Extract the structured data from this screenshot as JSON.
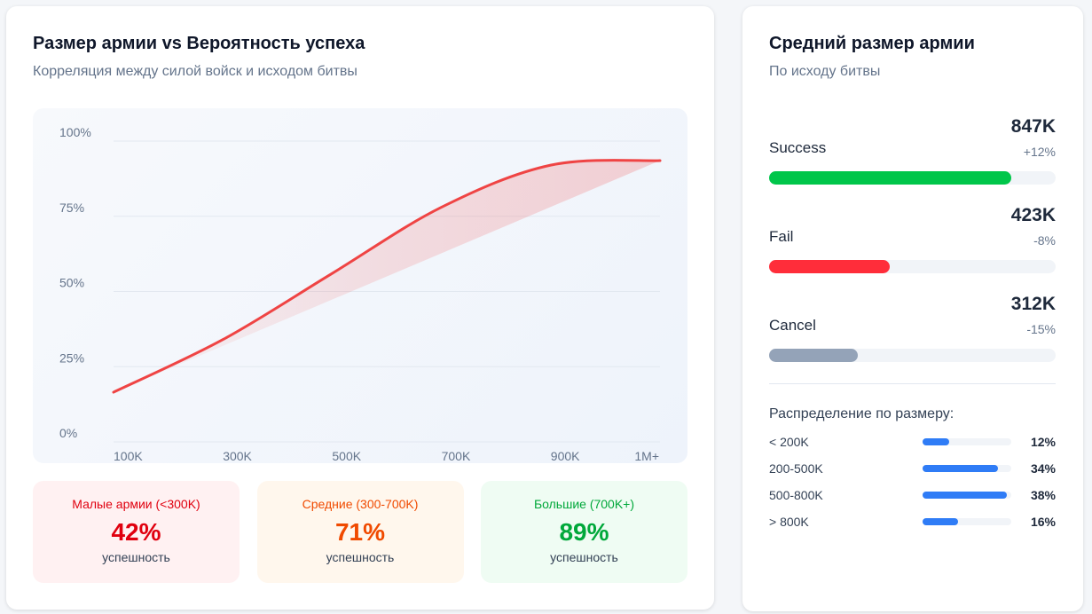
{
  "left": {
    "title": "Размер армии vs Вероятность успеха",
    "subtitle": "Корреляция между силой войск и исходом битвы",
    "tiles": [
      {
        "title": "Малые армии (<300K)",
        "value": "42%",
        "caption": "успешность",
        "color": "#e0000f",
        "bg": "#fff1f2"
      },
      {
        "title": "Средние (300-700K)",
        "value": "71%",
        "caption": "успешность",
        "color": "#f04a00",
        "bg": "#fff7ed"
      },
      {
        "title": "Большие (700K+)",
        "value": "89%",
        "caption": "успешность",
        "color": "#00a83a",
        "bg": "#effcf3"
      }
    ]
  },
  "chart_data": {
    "type": "line",
    "title": "",
    "xlabel": "",
    "ylabel": "",
    "categories": [
      "100K",
      "300K",
      "500K",
      "700K",
      "900K",
      "1M+"
    ],
    "values": [
      16.5,
      34,
      56,
      78,
      92,
      93.5
    ],
    "yticks": [
      "0%",
      "25%",
      "50%",
      "75%",
      "100%"
    ],
    "ylim": [
      0,
      100
    ],
    "grid": true,
    "line_color": "#ef4444",
    "fill": "area between curve and straight chord, light red"
  },
  "right": {
    "title": "Средний размер армии",
    "subtitle": "По исходу битвы",
    "outcomes": [
      {
        "label": "Success",
        "value": "847K",
        "change": "+12%",
        "fill": 84.5,
        "color": "#00c64a"
      },
      {
        "label": "Fail",
        "value": "423K",
        "change": "-8%",
        "fill": 42,
        "color": "#ff2d3a"
      },
      {
        "label": "Cancel",
        "value": "312K",
        "change": "-15%",
        "fill": 31,
        "color": "#94a3b8"
      }
    ],
    "dist_title": "Распределение по размеру:",
    "distribution": [
      {
        "label": "< 200K",
        "pct": "12%",
        "value": 12
      },
      {
        "label": "200-500K",
        "pct": "34%",
        "value": 34
      },
      {
        "label": "500-800K",
        "pct": "38%",
        "value": 38
      },
      {
        "label": "> 800K",
        "pct": "16%",
        "value": 16
      }
    ]
  }
}
